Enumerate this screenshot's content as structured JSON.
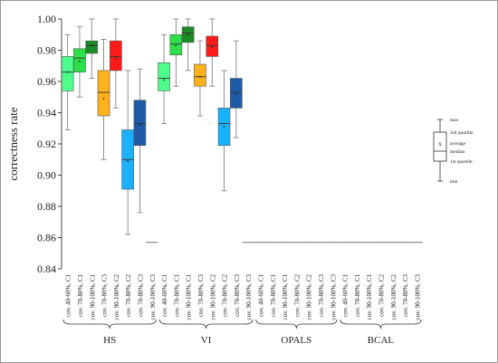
{
  "chart_data": {
    "type": "boxplot",
    "ylabel": "correctness rate",
    "ylim": [
      0.84,
      1.0
    ],
    "yticks": [
      "0.84",
      "0.86",
      "0.88",
      "0.90",
      "0.92",
      "0.94",
      "0.96",
      "0.98",
      "1.00"
    ],
    "grid": false,
    "categories": [
      "cov. 40-60%, C1",
      "cov. 70-80%, C1",
      "cov. 90-100%, C1",
      "cov. 70-80%, C3",
      "cov. 90-100%, C2",
      "cov. 70-80%, C2",
      "cov. 70-80%, C3",
      "cov. 90-100%, C3",
      "cov. 40-60%, C1",
      "cov. 70-80%, C1",
      "cov. 90-100%, C1",
      "cov. 70-80%, C3",
      "cov. 90-100%, C2",
      "cov. 70-80%, C2",
      "cov. 70-80%, C3",
      "cov. 90-100%, C3",
      "cov. 40-60%, C1",
      "cov. 70-80%, C1",
      "cov. 90-100%, C1",
      "cov. 70-80%, C2",
      "cov. 90-100%, C2",
      "cov. 70-80%, C3",
      "cov. 90-100%, C3",
      "cov. 40-60%, C1",
      "cov. 70-80%, C1",
      "cov. 90-100%, C1",
      "cov. 70-80%, C2",
      "cov. 90-100%, C2",
      "cov. 70-80%, C3",
      "cov. 90-100%, C3"
    ],
    "groups": [
      {
        "label": "HS",
        "start": 0,
        "count": 8
      },
      {
        "label": "VI",
        "start": 8,
        "count": 8
      },
      {
        "label": "OPALS",
        "start": 16,
        "count": 7
      },
      {
        "label": "BCAL",
        "start": 23,
        "count": 7
      }
    ],
    "boxes": [
      {
        "min": 0.929,
        "q1": 0.954,
        "median": 0.966,
        "q3": 0.976,
        "max": 0.99,
        "mean": 0.966,
        "color": "#4dff8a"
      },
      {
        "min": 0.95,
        "q1": 0.966,
        "median": 0.975,
        "q3": 0.981,
        "max": 0.995,
        "mean": 0.973,
        "color": "#2de04a"
      },
      {
        "min": 0.962,
        "q1": 0.978,
        "median": 0.983,
        "q3": 0.986,
        "max": 1.0,
        "mean": 0.983,
        "color": "#1a8a24"
      },
      {
        "min": 0.91,
        "q1": 0.938,
        "median": 0.953,
        "q3": 0.967,
        "max": 0.987,
        "mean": 0.949,
        "color": "#ffb21a"
      },
      {
        "min": 0.943,
        "q1": 0.967,
        "median": 0.976,
        "q3": 0.986,
        "max": 1.0,
        "mean": 0.975,
        "color": "#ff1a1a"
      },
      {
        "min": 0.862,
        "q1": 0.891,
        "median": 0.91,
        "q3": 0.929,
        "max": 0.967,
        "mean": 0.909,
        "color": "#1ab2ff"
      },
      {
        "min": 0.876,
        "q1": 0.919,
        "median": 0.933,
        "q3": 0.948,
        "max": 0.968,
        "mean": 0.932,
        "color": "#1f5aa8"
      },
      {
        "min": 0.857,
        "q1": 0.857,
        "median": 0.857,
        "q3": 0.857,
        "max": 0.857,
        "mean": 0.857,
        "color": "#cccccc"
      },
      {
        "min": 0.933,
        "q1": 0.954,
        "median": 0.962,
        "q3": 0.972,
        "max": 0.99,
        "mean": 0.961,
        "color": "#4dff8a"
      },
      {
        "min": 0.957,
        "q1": 0.977,
        "median": 0.984,
        "q3": 0.99,
        "max": 1.0,
        "mean": 0.983,
        "color": "#2de04a"
      },
      {
        "min": 0.967,
        "q1": 0.985,
        "median": 0.991,
        "q3": 0.995,
        "max": 1.0,
        "mean": 0.99,
        "color": "#1a8a24"
      },
      {
        "min": 0.938,
        "q1": 0.957,
        "median": 0.963,
        "q3": 0.971,
        "max": 0.986,
        "mean": 0.963,
        "color": "#ffb21a"
      },
      {
        "min": 0.957,
        "q1": 0.976,
        "median": 0.983,
        "q3": 0.989,
        "max": 1.0,
        "mean": 0.982,
        "color": "#ff1a1a"
      },
      {
        "min": 0.89,
        "q1": 0.919,
        "median": 0.933,
        "q3": 0.943,
        "max": 0.967,
        "mean": 0.931,
        "color": "#1ab2ff"
      },
      {
        "min": 0.924,
        "q1": 0.943,
        "median": 0.953,
        "q3": 0.962,
        "max": 0.986,
        "mean": 0.952,
        "color": "#1f5aa8"
      },
      {
        "min": 0.857,
        "q1": 0.857,
        "median": 0.857,
        "q3": 0.857,
        "max": 0.857,
        "mean": 0.857,
        "color": "#cccccc"
      },
      {
        "min": 0.857,
        "q1": 0.857,
        "median": 0.857,
        "q3": 0.857,
        "max": 0.857,
        "mean": 0.857,
        "color": "#cccccc"
      },
      {
        "min": 0.857,
        "q1": 0.857,
        "median": 0.857,
        "q3": 0.857,
        "max": 0.857,
        "mean": 0.857,
        "color": "#cccccc"
      },
      {
        "min": 0.857,
        "q1": 0.857,
        "median": 0.857,
        "q3": 0.857,
        "max": 0.857,
        "mean": 0.857,
        "color": "#cccccc"
      },
      {
        "min": 0.857,
        "q1": 0.857,
        "median": 0.857,
        "q3": 0.857,
        "max": 0.857,
        "mean": 0.857,
        "color": "#cccccc"
      },
      {
        "min": 0.857,
        "q1": 0.857,
        "median": 0.857,
        "q3": 0.857,
        "max": 0.857,
        "mean": 0.857,
        "color": "#cccccc"
      },
      {
        "min": 0.857,
        "q1": 0.857,
        "median": 0.857,
        "q3": 0.857,
        "max": 0.857,
        "mean": 0.857,
        "color": "#cccccc"
      },
      {
        "min": 0.857,
        "q1": 0.857,
        "median": 0.857,
        "q3": 0.857,
        "max": 0.857,
        "mean": 0.857,
        "color": "#cccccc"
      },
      {
        "min": 0.857,
        "q1": 0.857,
        "median": 0.857,
        "q3": 0.857,
        "max": 0.857,
        "mean": 0.857,
        "color": "#cccccc"
      },
      {
        "min": 0.857,
        "q1": 0.857,
        "median": 0.857,
        "q3": 0.857,
        "max": 0.857,
        "mean": 0.857,
        "color": "#cccccc"
      },
      {
        "min": 0.857,
        "q1": 0.857,
        "median": 0.857,
        "q3": 0.857,
        "max": 0.857,
        "mean": 0.857,
        "color": "#cccccc"
      },
      {
        "min": 0.857,
        "q1": 0.857,
        "median": 0.857,
        "q3": 0.857,
        "max": 0.857,
        "mean": 0.857,
        "color": "#cccccc"
      },
      {
        "min": 0.857,
        "q1": 0.857,
        "median": 0.857,
        "q3": 0.857,
        "max": 0.857,
        "mean": 0.857,
        "color": "#cccccc"
      },
      {
        "min": 0.857,
        "q1": 0.857,
        "median": 0.857,
        "q3": 0.857,
        "max": 0.857,
        "mean": 0.857,
        "color": "#cccccc"
      },
      {
        "min": 0.857,
        "q1": 0.857,
        "median": 0.857,
        "q3": 0.857,
        "max": 0.857,
        "mean": 0.857,
        "color": "#cccccc"
      }
    ],
    "legend": {
      "position": "right",
      "max_label": "max",
      "q3_label": "3rd quartile",
      "mean_label": "average",
      "median_label": "median",
      "q1_label": "1st quartile",
      "min_label": "min",
      "mean_symbol": "x"
    }
  }
}
